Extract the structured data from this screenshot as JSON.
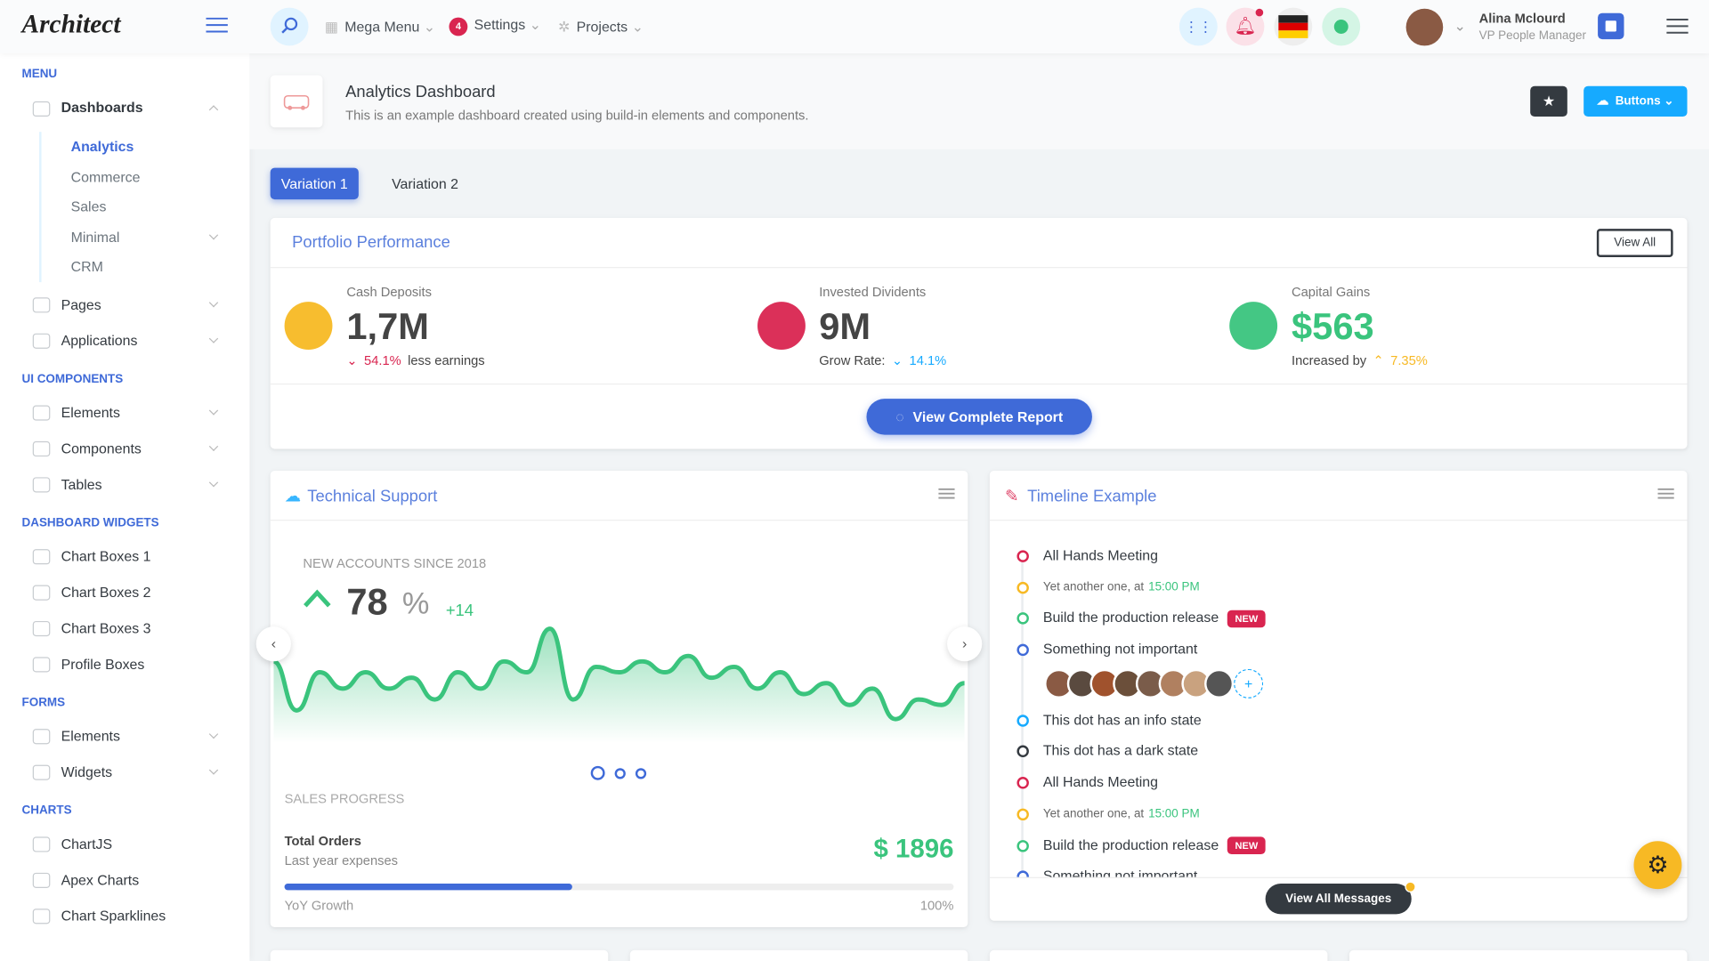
{
  "header": {
    "logo": "Architect",
    "menu": [
      "Mega Menu",
      "Settings",
      "Projects"
    ],
    "settings_badge": "4",
    "user_name": "Alina Mclourd",
    "user_role": "VP People Manager"
  },
  "sidebar": {
    "sections": [
      {
        "title": "MENU",
        "items": [
          {
            "label": "Dashboards",
            "sub": [
              {
                "label": "Analytics",
                "active": true
              },
              {
                "label": "Commerce"
              },
              {
                "label": "Sales"
              },
              {
                "label": "Minimal",
                "submenu": true
              },
              {
                "label": "CRM"
              }
            ]
          },
          {
            "label": "Pages",
            "submenu": true
          },
          {
            "label": "Applications",
            "submenu": true
          }
        ]
      },
      {
        "title": "UI COMPONENTS",
        "items": [
          {
            "label": "Elements",
            "submenu": true
          },
          {
            "label": "Components",
            "submenu": true
          },
          {
            "label": "Tables",
            "submenu": true
          }
        ]
      },
      {
        "title": "DASHBOARD WIDGETS",
        "items": [
          {
            "label": "Chart Boxes 1"
          },
          {
            "label": "Chart Boxes 2"
          },
          {
            "label": "Chart Boxes 3"
          },
          {
            "label": "Profile Boxes"
          }
        ]
      },
      {
        "title": "FORMS",
        "items": [
          {
            "label": "Elements",
            "submenu": true
          },
          {
            "label": "Widgets",
            "submenu": true
          }
        ]
      },
      {
        "title": "CHARTS",
        "items": [
          {
            "label": "ChartJS"
          },
          {
            "label": "Apex Charts"
          },
          {
            "label": "Chart Sparklines"
          }
        ]
      }
    ]
  },
  "page": {
    "title": "Analytics Dashboard",
    "subtitle": "This is an example dashboard created using build-in elements and components.",
    "button": "Buttons"
  },
  "tabs": [
    "Variation 1",
    "Variation 2"
  ],
  "portfolio": {
    "title": "Portfolio Performance",
    "view_all": "View All",
    "report": "View Complete Report",
    "stats": [
      {
        "label": "Cash Deposits",
        "value": "1,7M",
        "change": "54.1%",
        "note": "less earnings",
        "color": "#f7b924",
        "value_color": "#444",
        "change_color": "#d92550"
      },
      {
        "label": "Invested Dividents",
        "value": "9M",
        "note": "Grow Rate:",
        "change": "14.1%",
        "color": "#d92550",
        "value_color": "#444",
        "change_color": "#16aaff"
      },
      {
        "label": "Capital Gains",
        "value": "$563",
        "note": "Increased by",
        "change": "7.35%",
        "color": "#3ac47d",
        "value_color": "#3ac47d",
        "change_color": "#f7b924"
      }
    ]
  },
  "support": {
    "title": "Technical Support",
    "caption": "NEW ACCOUNTS SINCE 2018",
    "value": "78",
    "unit": "%",
    "delta": "+14",
    "sparkline": [
      65,
      20,
      55,
      40,
      55,
      40,
      50,
      30,
      55,
      40,
      65,
      55,
      95,
      30,
      60,
      55,
      65,
      55,
      70,
      50,
      60,
      40,
      55,
      35,
      45,
      25,
      40,
      12,
      30,
      25,
      45
    ],
    "sales_title": "SALES PROGRESS",
    "orders": "Total Orders",
    "orders_note": "Last year expenses",
    "amount": "$ 1896",
    "growth": "YoY Growth",
    "growth_pct": "100%",
    "progress": 43
  },
  "timeline": {
    "title": "Timeline Example",
    "view_all": "View All Messages",
    "items": [
      {
        "text": "All Hands Meeting",
        "color": "#d92550"
      },
      {
        "text": "Yet another one, at",
        "time": "15:00 PM",
        "color": "#f7b924"
      },
      {
        "text": "Build the production release",
        "badge": "NEW",
        "color": "#3ac47d"
      },
      {
        "text": "Something not important",
        "color": "#3f6ad8",
        "avatars": true
      },
      {
        "text": "This dot has an info state",
        "color": "#16aaff"
      },
      {
        "text": "This dot has a dark state",
        "color": "#343a40"
      },
      {
        "text": "All Hands Meeting",
        "color": "#d92550"
      },
      {
        "text": "Yet another one, at",
        "time": "15:00 PM",
        "color": "#f7b924"
      },
      {
        "text": "Build the production release",
        "badge": "NEW",
        "color": "#3ac47d"
      },
      {
        "text": "Something not important",
        "color": "#3f6ad8"
      }
    ]
  }
}
